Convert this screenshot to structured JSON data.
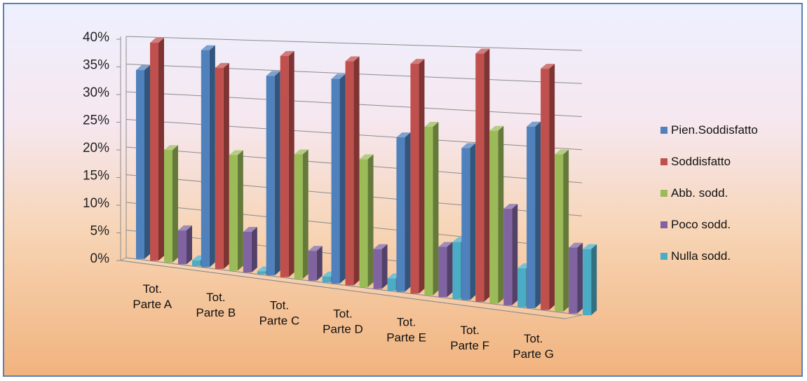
{
  "chart_data": {
    "type": "bar",
    "title": "",
    "xlabel": "",
    "ylabel": "",
    "ylim": [
      0,
      40
    ],
    "y_ticks": [
      "0%",
      "5%",
      "10%",
      "15%",
      "20%",
      "25%",
      "30%",
      "35%",
      "40%"
    ],
    "categories": [
      [
        "Tot.",
        "Parte A"
      ],
      [
        "Tot.",
        "Parte B"
      ],
      [
        "Tot.",
        "Parte C"
      ],
      [
        "Tot.",
        "Parte D"
      ],
      [
        "Tot.",
        "Parte E"
      ],
      [
        "Tot.",
        "Parte F"
      ],
      [
        "Tot.",
        "Parte G"
      ]
    ],
    "series": [
      {
        "name": "Pien.Soddisfatto",
        "color": "#4f81bd",
        "values": [
          34,
          38,
          34,
          34,
          25,
          24,
          28
        ]
      },
      {
        "name": "Soddisfatto",
        "color": "#c0504d",
        "values": [
          39,
          35,
          37.5,
          37,
          37,
          39,
          37
        ]
      },
      {
        "name": "Abb. sodd.",
        "color": "#9bbb59",
        "values": [
          20,
          20,
          21,
          21,
          27,
          27,
          24
        ]
      },
      {
        "name": "Poco sodd.",
        "color": "#8064a2",
        "values": [
          6,
          7,
          5,
          6.5,
          8,
          15,
          10
        ]
      },
      {
        "name": "Nulla sodd.",
        "color": "#4bacc6",
        "values": [
          1,
          0.5,
          1,
          2,
          9,
          6,
          10
        ]
      }
    ],
    "legend_position": "right",
    "grid": true,
    "style": "3d-clustered-column"
  }
}
